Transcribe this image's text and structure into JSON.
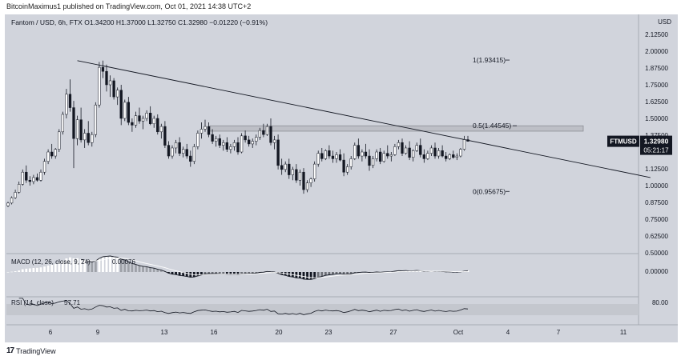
{
  "publisher_line": "BitcoinMaximus1 published on TradingView.com, Oct 01, 2021 14:38 UTC+2",
  "footer": {
    "logo": "17",
    "brand": "TradingView"
  },
  "colors": {
    "background": "#d1d4dc",
    "candle_up": "#ffffff",
    "candle_down": "#131722",
    "line": "#131722",
    "label_bg": "#131722",
    "resistance_box": "#bdbfc6"
  },
  "chart_data": {
    "type": "candlestick",
    "title": "Fantom / USD, 6h, FTX",
    "legend": {
      "symbol": "Fantom / USD, 6h, FTX",
      "open_label": "O",
      "open": "1.34200",
      "high_label": "H",
      "high": "1.37000",
      "low_label": "L",
      "low": "1.32750",
      "close_label": "C",
      "close": "1.32980",
      "change": "−0.01220 (−0.91%)"
    },
    "price_scale": {
      "currency": "USD",
      "ylim": [
        0.5,
        2.25
      ],
      "ticks": [
        "2.12500",
        "2.00000",
        "1.87500",
        "1.75000",
        "1.62500",
        "1.50000",
        "1.37500",
        "1.25000",
        "1.12500",
        "1.00000",
        "0.87500",
        "0.75000",
        "0.62500",
        "0.50000"
      ],
      "current_tag": {
        "symbol": "FTMUSD",
        "value": "1.32980",
        "countdown": "05:21:17"
      }
    },
    "x_axis": {
      "ticks": [
        "6",
        "9",
        "13",
        "16",
        "20",
        "23",
        "27",
        "Oct",
        "4",
        "7",
        "11"
      ]
    },
    "fibonacci": [
      {
        "label": "1(1.93415)",
        "value": 1.93415
      },
      {
        "label": "0.5(1.44545)",
        "value": 1.44545
      },
      {
        "label": "0(0.95675)",
        "value": 0.95675
      }
    ],
    "resistance_zone": [
      1.405,
      1.445
    ],
    "trendline": {
      "from": {
        "bar": 19,
        "price": 1.93
      },
      "to": {
        "bar": 176,
        "price": 1.06
      }
    },
    "candles": [
      [
        0.85,
        0.88,
        0.84,
        0.87
      ],
      [
        0.87,
        0.92,
        0.86,
        0.91
      ],
      [
        0.91,
        0.97,
        0.9,
        0.95
      ],
      [
        0.95,
        1.03,
        0.94,
        1.01
      ],
      [
        1.01,
        1.12,
        1.0,
        1.1
      ],
      [
        1.1,
        1.15,
        1.02,
        1.04
      ],
      [
        1.04,
        1.07,
        1.0,
        1.03
      ],
      [
        1.03,
        1.08,
        1.01,
        1.06
      ],
      [
        1.06,
        1.09,
        1.03,
        1.04
      ],
      [
        1.04,
        1.12,
        1.03,
        1.1
      ],
      [
        1.1,
        1.2,
        1.08,
        1.18
      ],
      [
        1.18,
        1.27,
        1.16,
        1.25
      ],
      [
        1.25,
        1.31,
        1.2,
        1.22
      ],
      [
        1.22,
        1.28,
        1.2,
        1.27
      ],
      [
        1.27,
        1.42,
        1.25,
        1.4
      ],
      [
        1.4,
        1.55,
        1.38,
        1.53
      ],
      [
        1.53,
        1.72,
        1.5,
        1.68
      ],
      [
        1.68,
        1.79,
        1.55,
        1.58
      ],
      [
        1.58,
        1.63,
        1.13,
        1.35
      ],
      [
        1.35,
        1.52,
        1.3,
        1.49
      ],
      [
        1.49,
        1.58,
        1.32,
        1.34
      ],
      [
        1.34,
        1.42,
        1.28,
        1.39
      ],
      [
        1.39,
        1.48,
        1.3,
        1.32
      ],
      [
        1.32,
        1.4,
        1.29,
        1.38
      ],
      [
        1.38,
        1.62,
        1.36,
        1.6
      ],
      [
        1.6,
        1.92,
        1.58,
        1.88
      ],
      [
        1.88,
        1.93,
        1.8,
        1.85
      ],
      [
        1.85,
        1.9,
        1.7,
        1.75
      ],
      [
        1.75,
        1.82,
        1.66,
        1.78
      ],
      [
        1.78,
        1.8,
        1.64,
        1.66
      ],
      [
        1.66,
        1.73,
        1.6,
        1.71
      ],
      [
        1.71,
        1.75,
        1.45,
        1.5
      ],
      [
        1.5,
        1.64,
        1.48,
        1.62
      ],
      [
        1.62,
        1.66,
        1.45,
        1.47
      ],
      [
        1.47,
        1.5,
        1.4,
        1.45
      ],
      [
        1.45,
        1.55,
        1.43,
        1.52
      ],
      [
        1.52,
        1.58,
        1.46,
        1.48
      ],
      [
        1.48,
        1.52,
        1.42,
        1.5
      ],
      [
        1.5,
        1.56,
        1.48,
        1.54
      ],
      [
        1.54,
        1.59,
        1.45,
        1.46
      ],
      [
        1.46,
        1.52,
        1.43,
        1.5
      ],
      [
        1.5,
        1.53,
        1.38,
        1.4
      ],
      [
        1.4,
        1.46,
        1.35,
        1.44
      ],
      [
        1.44,
        1.48,
        1.28,
        1.3
      ],
      [
        1.3,
        1.33,
        1.2,
        1.22
      ],
      [
        1.22,
        1.3,
        1.2,
        1.28
      ],
      [
        1.28,
        1.34,
        1.24,
        1.32
      ],
      [
        1.32,
        1.36,
        1.22,
        1.24
      ],
      [
        1.24,
        1.29,
        1.21,
        1.27
      ],
      [
        1.27,
        1.31,
        1.2,
        1.22
      ],
      [
        1.22,
        1.26,
        1.14,
        1.18
      ],
      [
        1.18,
        1.31,
        1.16,
        1.29
      ],
      [
        1.29,
        1.41,
        1.27,
        1.39
      ],
      [
        1.39,
        1.47,
        1.35,
        1.42
      ],
      [
        1.42,
        1.49,
        1.4,
        1.44
      ],
      [
        1.44,
        1.47,
        1.36,
        1.38
      ],
      [
        1.38,
        1.42,
        1.31,
        1.33
      ],
      [
        1.33,
        1.37,
        1.29,
        1.35
      ],
      [
        1.35,
        1.38,
        1.28,
        1.3
      ],
      [
        1.3,
        1.34,
        1.26,
        1.32
      ],
      [
        1.32,
        1.36,
        1.25,
        1.27
      ],
      [
        1.27,
        1.31,
        1.24,
        1.29
      ],
      [
        1.29,
        1.34,
        1.26,
        1.32
      ],
      [
        1.32,
        1.36,
        1.23,
        1.25
      ],
      [
        1.25,
        1.39,
        1.24,
        1.37
      ],
      [
        1.37,
        1.41,
        1.32,
        1.34
      ],
      [
        1.34,
        1.37,
        1.29,
        1.31
      ],
      [
        1.31,
        1.35,
        1.28,
        1.33
      ],
      [
        1.33,
        1.38,
        1.3,
        1.36
      ],
      [
        1.36,
        1.43,
        1.34,
        1.41
      ],
      [
        1.41,
        1.46,
        1.36,
        1.38
      ],
      [
        1.38,
        1.46,
        1.37,
        1.44
      ],
      [
        1.44,
        1.5,
        1.3,
        1.32
      ],
      [
        1.32,
        1.37,
        1.27,
        1.34
      ],
      [
        1.34,
        1.38,
        1.12,
        1.15
      ],
      [
        1.15,
        1.2,
        1.08,
        1.12
      ],
      [
        1.12,
        1.18,
        1.1,
        1.16
      ],
      [
        1.16,
        1.2,
        1.05,
        1.08
      ],
      [
        1.08,
        1.14,
        1.04,
        1.12
      ],
      [
        1.12,
        1.16,
        1.02,
        1.04
      ],
      [
        1.04,
        1.12,
        1.0,
        1.1
      ],
      [
        1.1,
        1.13,
        0.94,
        0.97
      ],
      [
        0.97,
        1.04,
        0.95,
        1.02
      ],
      [
        1.02,
        1.06,
        0.99,
        1.05
      ],
      [
        1.05,
        1.18,
        1.03,
        1.16
      ],
      [
        1.16,
        1.26,
        1.14,
        1.24
      ],
      [
        1.24,
        1.28,
        1.18,
        1.2
      ],
      [
        1.2,
        1.27,
        1.19,
        1.26
      ],
      [
        1.26,
        1.3,
        1.2,
        1.22
      ],
      [
        1.22,
        1.26,
        1.17,
        1.2
      ],
      [
        1.2,
        1.25,
        1.17,
        1.23
      ],
      [
        1.23,
        1.27,
        1.18,
        1.19
      ],
      [
        1.19,
        1.24,
        1.07,
        1.1
      ],
      [
        1.1,
        1.16,
        1.08,
        1.14
      ],
      [
        1.14,
        1.22,
        1.12,
        1.2
      ],
      [
        1.2,
        1.32,
        1.19,
        1.3
      ],
      [
        1.3,
        1.35,
        1.2,
        1.22
      ],
      [
        1.22,
        1.27,
        1.18,
        1.25
      ],
      [
        1.25,
        1.31,
        1.2,
        1.22
      ],
      [
        1.22,
        1.27,
        1.11,
        1.15
      ],
      [
        1.15,
        1.22,
        1.13,
        1.2
      ],
      [
        1.2,
        1.27,
        1.18,
        1.25
      ],
      [
        1.25,
        1.28,
        1.16,
        1.18
      ],
      [
        1.18,
        1.26,
        1.17,
        1.24
      ],
      [
        1.24,
        1.3,
        1.2,
        1.22
      ],
      [
        1.22,
        1.25,
        1.18,
        1.23
      ],
      [
        1.23,
        1.31,
        1.22,
        1.29
      ],
      [
        1.29,
        1.34,
        1.27,
        1.32
      ],
      [
        1.32,
        1.35,
        1.22,
        1.24
      ],
      [
        1.24,
        1.3,
        1.23,
        1.28
      ],
      [
        1.28,
        1.33,
        1.19,
        1.21
      ],
      [
        1.21,
        1.27,
        1.18,
        1.26
      ],
      [
        1.26,
        1.32,
        1.25,
        1.3
      ],
      [
        1.3,
        1.35,
        1.21,
        1.23
      ],
      [
        1.23,
        1.27,
        1.17,
        1.2
      ],
      [
        1.2,
        1.26,
        1.19,
        1.24
      ],
      [
        1.24,
        1.3,
        1.22,
        1.28
      ],
      [
        1.28,
        1.32,
        1.2,
        1.22
      ],
      [
        1.22,
        1.28,
        1.2,
        1.26
      ],
      [
        1.26,
        1.3,
        1.21,
        1.22
      ],
      [
        1.22,
        1.25,
        1.18,
        1.2
      ],
      [
        1.2,
        1.24,
        1.19,
        1.23
      ],
      [
        1.23,
        1.26,
        1.2,
        1.21
      ],
      [
        1.21,
        1.24,
        1.19,
        1.22
      ],
      [
        1.22,
        1.28,
        1.21,
        1.27
      ],
      [
        1.27,
        1.37,
        1.26,
        1.342
      ],
      [
        1.342,
        1.37,
        1.3275,
        1.3298
      ]
    ]
  },
  "macd": {
    "title": "MACD (12, 26, close, 9, 24)",
    "value": "0.00076",
    "scale_label": "0.00000"
  },
  "rsi": {
    "title": "RSI (14, close)",
    "value": "57.71",
    "scale_label": "80.00"
  }
}
